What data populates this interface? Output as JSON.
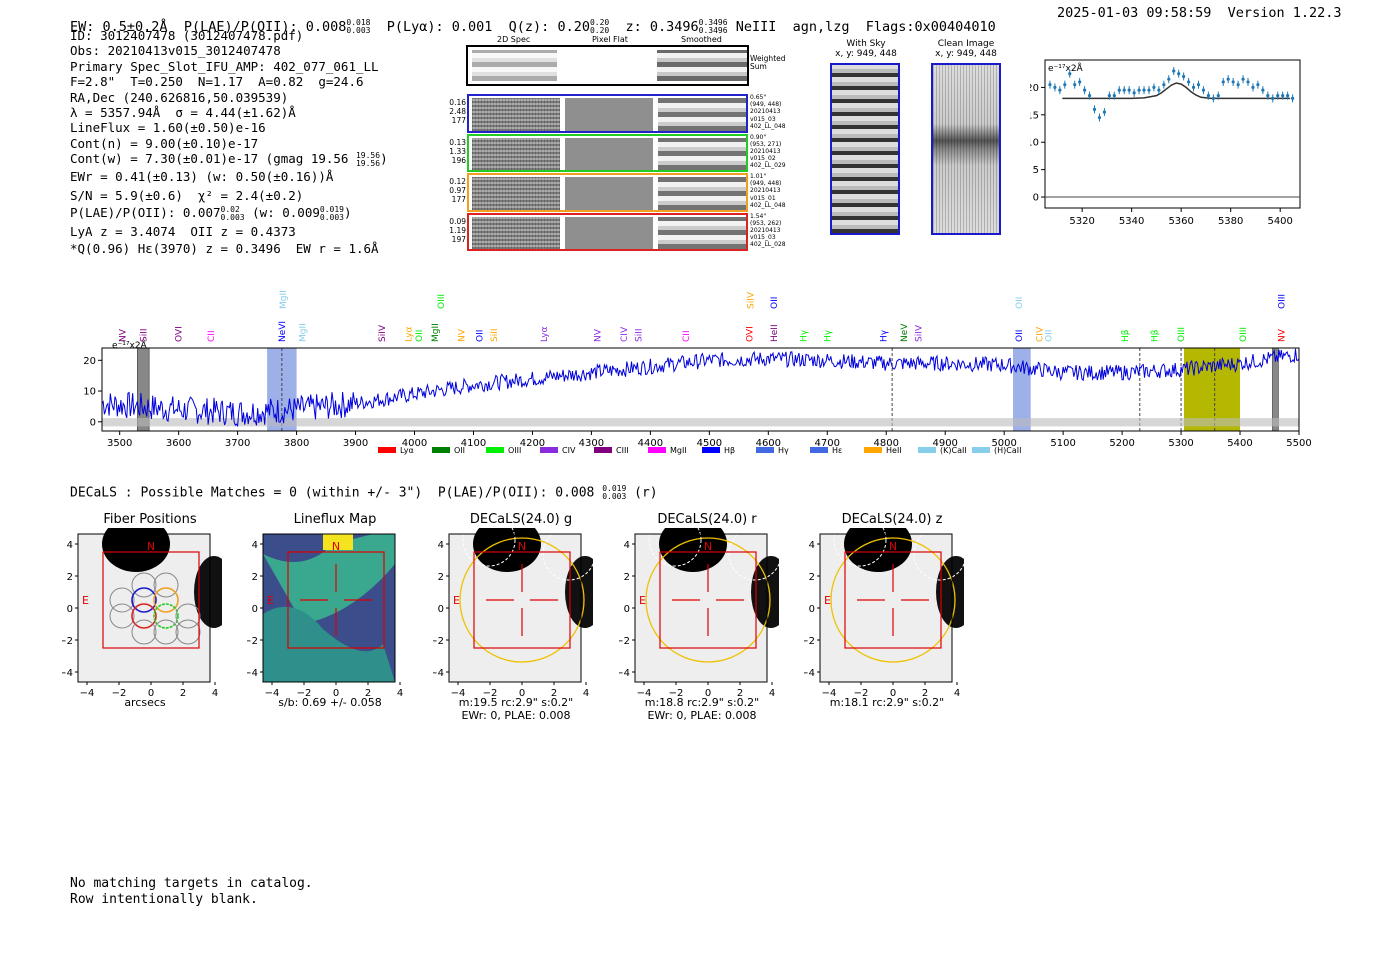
{
  "header": {
    "ew": "EW: 0.5±0.2Å",
    "plae_label": "P(LAE)/P(OII): 0.008",
    "plae_hi": "0.018",
    "plae_lo": "0.003",
    "plya": "P(Lyα): 0.001",
    "q_label": "Q(z): 0.20",
    "q_hi": "0.20",
    "q_lo": "0.20",
    "z_label": "z: 0.3496",
    "z_hi": "0.3496",
    "z_lo": "0.3496",
    "lines": "NeIII  agn,lzg  Flags:0x00404010",
    "timestamp": "2025-01-03 09:58:59  Version 1.22.3"
  },
  "info": {
    "id": "ID: 3012407478 (3012407478.pdf)",
    "obs": "Obs: 20210413v015_3012407478",
    "primary": "Primary Spec_Slot_IFU_AMP: 402_077_061_LL",
    "params": "F=2.8\"  T=0.250  N=1.17  A=0.82  g=24.6",
    "radec": "RA,Dec (240.626816,50.039539)",
    "lambda": "λ = 5357.94Å  σ = 4.44(±1.62)Å",
    "lineflux": "LineFlux = 1.60(±0.50)e-16",
    "contn": "Cont(n) = 9.00(±0.10)e-17",
    "contw": "Cont(w) = 7.30(±0.01)e-17 (gmag 19.56",
    "contw_hi": "19.56",
    "contw_lo": "19.56",
    "ewr": "EWr = 0.41(±0.13) (w: 0.50(±0.16))Å",
    "sn": "S/N = 5.9(±0.6)  χ² = 2.4(±0.2)",
    "plae": "P(LAE)/P(OII): 0.007",
    "plae_hi": "0.02",
    "plae_lo": "0.003",
    "plae_w": "(w: 0.009",
    "plae_w_hi": "0.019",
    "plae_w_lo": "0.003",
    "lya_z": "LyA z = 3.4074  OII z = 0.4373",
    "q_line": "*Q(0.96) Hε(3970) z = 0.3496  EW r = 1.6Å"
  },
  "cutouts": {
    "col_2d": "2D Spec",
    "col_flat": "Pixel Flat",
    "col_smooth": "Smoothed",
    "weighted_sum": "Weighted Sum",
    "rows": [
      {
        "l1": "0.16",
        "l2": "2.48",
        "l3": "177",
        "r1": "0.65\"",
        "r2": "(949, 448)",
        "r3": "20210413",
        "r4": "v015_03",
        "r5": "402_LL_048",
        "color": "#2222cc"
      },
      {
        "l1": "0.13",
        "l2": "1.33",
        "l3": "196",
        "r1": "0.90\"",
        "r2": "(953, 271)",
        "r3": "20210413",
        "r4": "v015_02",
        "r5": "402_LL_029",
        "color": "#22cc22"
      },
      {
        "l1": "0.12",
        "l2": "0.97",
        "l3": "177",
        "r1": "1.01\"",
        "r2": "(949, 448)",
        "r3": "20210413",
        "r4": "v015_01",
        "r5": "402_LL_048",
        "color": "#f0a020"
      },
      {
        "l1": "0.09",
        "l2": "1.19",
        "l3": "197",
        "r1": "1.54\"",
        "r2": "(953, 262)",
        "r3": "20210413",
        "r4": "v015_03",
        "r5": "402_LL_028",
        "color": "#dd2222"
      }
    ],
    "with_sky": "With Sky",
    "with_sky_xy": "x, y: 949, 448",
    "clean": "Clean Image",
    "clean_xy": "x, y: 949, 448"
  },
  "chart_data": [
    {
      "type": "line",
      "title": "",
      "scale_label": "e⁻¹⁷x2Å",
      "xlim": [
        5305,
        5408
      ],
      "ylim": [
        -2,
        25
      ],
      "xticks": [
        5320,
        5340,
        5360,
        5380,
        5400
      ],
      "yticks": [
        0,
        5,
        10,
        15,
        20
      ],
      "points_x": [
        5307,
        5309,
        5311,
        5313,
        5315,
        5317,
        5319,
        5321,
        5323,
        5325,
        5327,
        5329,
        5331,
        5333,
        5335,
        5337,
        5339,
        5341,
        5343,
        5345,
        5347,
        5349,
        5351,
        5353,
        5355,
        5357,
        5359,
        5361,
        5363,
        5365,
        5367,
        5369,
        5371,
        5373,
        5375,
        5377,
        5379,
        5381,
        5383,
        5385,
        5387,
        5389,
        5391,
        5393,
        5395,
        5397,
        5399,
        5401,
        5403,
        5405
      ],
      "points_y": [
        20.5,
        20,
        19.5,
        20.5,
        22.5,
        20.5,
        21,
        19.5,
        18.5,
        16,
        14.5,
        15.5,
        18.5,
        18.5,
        19.5,
        19.5,
        19.5,
        19,
        19.5,
        19.5,
        19.5,
        20,
        19.5,
        20.5,
        21.5,
        23,
        22.5,
        22,
        21,
        20,
        20.5,
        19.5,
        18.5,
        18,
        18.5,
        21,
        21.5,
        21,
        20.5,
        21.5,
        21,
        20,
        20.5,
        19.5,
        18.5,
        18,
        18.5,
        18.5,
        18.5,
        18
      ],
      "fit_x": [
        5312,
        5340,
        5345,
        5350,
        5352,
        5354,
        5356,
        5358,
        5360,
        5362,
        5364,
        5366,
        5368,
        5372,
        5404
      ],
      "fit_y": [
        18,
        18,
        18.1,
        18.5,
        19,
        19.7,
        20.4,
        20.8,
        20.6,
        20,
        19.2,
        18.6,
        18.2,
        18,
        18
      ]
    },
    {
      "type": "line",
      "scale_label": "e⁻¹⁷x2Å",
      "xlim": [
        3470,
        5500
      ],
      "ylim": [
        -3,
        24
      ],
      "xticks": [
        3500,
        3600,
        3700,
        3800,
        3900,
        4000,
        4100,
        4200,
        4300,
        4400,
        4500,
        4600,
        4700,
        4800,
        4900,
        5000,
        5100,
        5200,
        5300,
        5400,
        5500
      ],
      "yticks": [
        0,
        10,
        20
      ],
      "blue_bands": [
        [
          3750,
          3800
        ],
        [
          5015,
          5045
        ]
      ],
      "olive_band": [
        5305,
        5400
      ],
      "gray_bands": [
        [
          3530,
          3550
        ],
        [
          5455,
          5465
        ]
      ],
      "dashed_lines": [
        3775,
        4810,
        5230,
        5300,
        5357
      ],
      "legend": [
        {
          "name": "Lyα",
          "color": "#ff0000"
        },
        {
          "name": "OII",
          "color": "#008000"
        },
        {
          "name": "OIII",
          "color": "#00ee00"
        },
        {
          "name": "CIV",
          "color": "#8a2be2"
        },
        {
          "name": "CIII",
          "color": "#800080"
        },
        {
          "name": "MgII",
          "color": "#ff00ff"
        },
        {
          "name": "Hβ",
          "color": "#0000ff"
        },
        {
          "name": "Hγ",
          "color": "#4169e1"
        },
        {
          "name": "Hε",
          "color": "#4169e1"
        },
        {
          "name": "HeII",
          "color": "#ffa500"
        },
        {
          "name": "(K)CaII",
          "color": "#87ceeb"
        },
        {
          "name": "(H)CaII",
          "color": "#87ceeb"
        }
      ],
      "line_labels": [
        {
          "name": "NV",
          "x": 3505,
          "row": 1,
          "color": "#800080"
        },
        {
          "name": "SiII",
          "x": 3540,
          "row": 1,
          "color": "#800080"
        },
        {
          "name": "OVI",
          "x": 3600,
          "row": 1,
          "color": "#800080"
        },
        {
          "name": "CII",
          "x": 3655,
          "row": 1,
          "color": "#ff00ff"
        },
        {
          "name": "MgII",
          "x": 3777,
          "row": 0,
          "color": "#87ceeb"
        },
        {
          "name": "NeVI",
          "x": 3775,
          "row": 1,
          "color": "#0000ff"
        },
        {
          "name": "MgII",
          "x": 3810,
          "row": 1,
          "color": "#87ceeb"
        },
        {
          "name": "SiIV",
          "x": 3945,
          "row": 1,
          "color": "#800080"
        },
        {
          "name": "Lyα",
          "x": 3990,
          "row": 1,
          "color": "#ffa500"
        },
        {
          "name": "OII",
          "x": 4008,
          "row": 1,
          "color": "#00ee00"
        },
        {
          "name": "MgII",
          "x": 4035,
          "row": 1,
          "color": "#008000"
        },
        {
          "name": "OIII",
          "x": 4045,
          "row": 0,
          "color": "#00ee00"
        },
        {
          "name": "NV",
          "x": 4080,
          "row": 1,
          "color": "#ffa500"
        },
        {
          "name": "OII",
          "x": 4110,
          "row": 1,
          "color": "#0000ff"
        },
        {
          "name": "SiII",
          "x": 4135,
          "row": 1,
          "color": "#ffa500"
        },
        {
          "name": "Lyα",
          "x": 4220,
          "row": 1,
          "color": "#8a2be2"
        },
        {
          "name": "NV",
          "x": 4310,
          "row": 1,
          "color": "#8a2be2"
        },
        {
          "name": "CIV",
          "x": 4355,
          "row": 1,
          "color": "#8a2be2"
        },
        {
          "name": "SiII",
          "x": 4380,
          "row": 1,
          "color": "#8a2be2"
        },
        {
          "name": "CII",
          "x": 4460,
          "row": 1,
          "color": "#ff00ff"
        },
        {
          "name": "SiIV",
          "x": 4570,
          "row": 0,
          "color": "#ffa500"
        },
        {
          "name": "OVI",
          "x": 4568,
          "row": 1,
          "color": "#ff0000"
        },
        {
          "name": "OII",
          "x": 4610,
          "row": 0,
          "color": "#0000ff"
        },
        {
          "name": "HeII",
          "x": 4610,
          "row": 1,
          "color": "#800080"
        },
        {
          "name": "Hγ",
          "x": 4660,
          "row": 1,
          "color": "#00ee00"
        },
        {
          "name": "Hγ",
          "x": 4700,
          "row": 1,
          "color": "#00ee00"
        },
        {
          "name": "Hγ",
          "x": 4795,
          "row": 1,
          "color": "#0000ff"
        },
        {
          "name": "NeV",
          "x": 4830,
          "row": 1,
          "color": "#008000"
        },
        {
          "name": "SiIV",
          "x": 4855,
          "row": 1,
          "color": "#8a2be2"
        },
        {
          "name": "OII",
          "x": 5025,
          "row": 0,
          "color": "#87ceeb"
        },
        {
          "name": "OII",
          "x": 5025,
          "row": 1,
          "color": "#0000ff"
        },
        {
          "name": "CIV",
          "x": 5060,
          "row": 1,
          "color": "#ffa500"
        },
        {
          "name": "OII",
          "x": 5075,
          "row": 1,
          "color": "#87ceeb"
        },
        {
          "name": "Hβ",
          "x": 5205,
          "row": 1,
          "color": "#00ee00"
        },
        {
          "name": "Hβ",
          "x": 5255,
          "row": 1,
          "color": "#00ee00"
        },
        {
          "name": "OIII",
          "x": 5300,
          "row": 1,
          "color": "#00ee00"
        },
        {
          "name": "OIII",
          "x": 5405,
          "row": 1,
          "color": "#00ee00"
        },
        {
          "name": "OIII",
          "x": 5470,
          "row": 0,
          "color": "#0000ff"
        },
        {
          "name": "NV",
          "x": 5470,
          "row": 1,
          "color": "#ff0000"
        }
      ]
    }
  ],
  "decals": {
    "summary": "DECaLS : Possible Matches = 0 (within +/- 3\")  P(LAE)/P(OII): 0.008",
    "summary_hi": "0.019",
    "summary_lo": "0.003",
    "summary_band": "(r)",
    "ticks": [
      "−4",
      "−2",
      "0",
      "2",
      "4"
    ],
    "panels": [
      {
        "title": "Fiber Positions",
        "label1": "arcsecs",
        "label2": ""
      },
      {
        "title": "Lineflux Map",
        "label1": "s/b: 0.69 +/- 0.058",
        "label2": ""
      },
      {
        "title": "DECaLS(24.0) g",
        "label1": "m:19.5 rc:2.9\"  s:0.2\"",
        "label2": "EWr: 0, PLAE: 0.008"
      },
      {
        "title": "DECaLS(24.0) r",
        "label1": "m:18.8 rc:2.9\"  s:0.2\"",
        "label2": "EWr: 0, PLAE: 0.008"
      },
      {
        "title": "DECaLS(24.0) z",
        "label1": "m:18.1 rc:2.9\"  s:0.2\"",
        "label2": ""
      }
    ],
    "north": "N",
    "east": "E"
  },
  "footer": {
    "line1": "No matching targets in catalog.",
    "line2": "Row intentionally blank."
  }
}
